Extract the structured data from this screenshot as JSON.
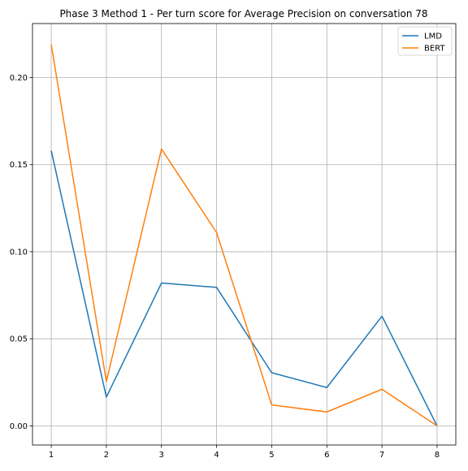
{
  "chart_data": {
    "type": "line",
    "title": "Phase 3 Method 1 - Per turn score for Average Precision on conversation 78",
    "xlabel": "",
    "ylabel": "",
    "x": [
      1,
      2,
      3,
      4,
      5,
      6,
      7,
      8
    ],
    "xlim": [
      0.66,
      8.34
    ],
    "ylim": [
      -0.011,
      0.231
    ],
    "xticks": [
      "1",
      "2",
      "3",
      "4",
      "5",
      "6",
      "7",
      "8"
    ],
    "yticks": [
      0.0,
      0.05,
      0.1,
      0.15,
      0.2
    ],
    "ytick_labels": [
      "0.00",
      "0.05",
      "0.10",
      "0.15",
      "0.20"
    ],
    "grid": true,
    "legend_position": "top-right",
    "series": [
      {
        "name": "LMD",
        "color": "#1f77b4",
        "values": [
          0.158,
          0.0165,
          0.082,
          0.0795,
          0.0305,
          0.022,
          0.063,
          0.0
        ]
      },
      {
        "name": "BERT",
        "color": "#ff7f0e",
        "values": [
          0.219,
          0.0255,
          0.159,
          0.111,
          0.012,
          0.008,
          0.021,
          0.0
        ]
      }
    ]
  }
}
